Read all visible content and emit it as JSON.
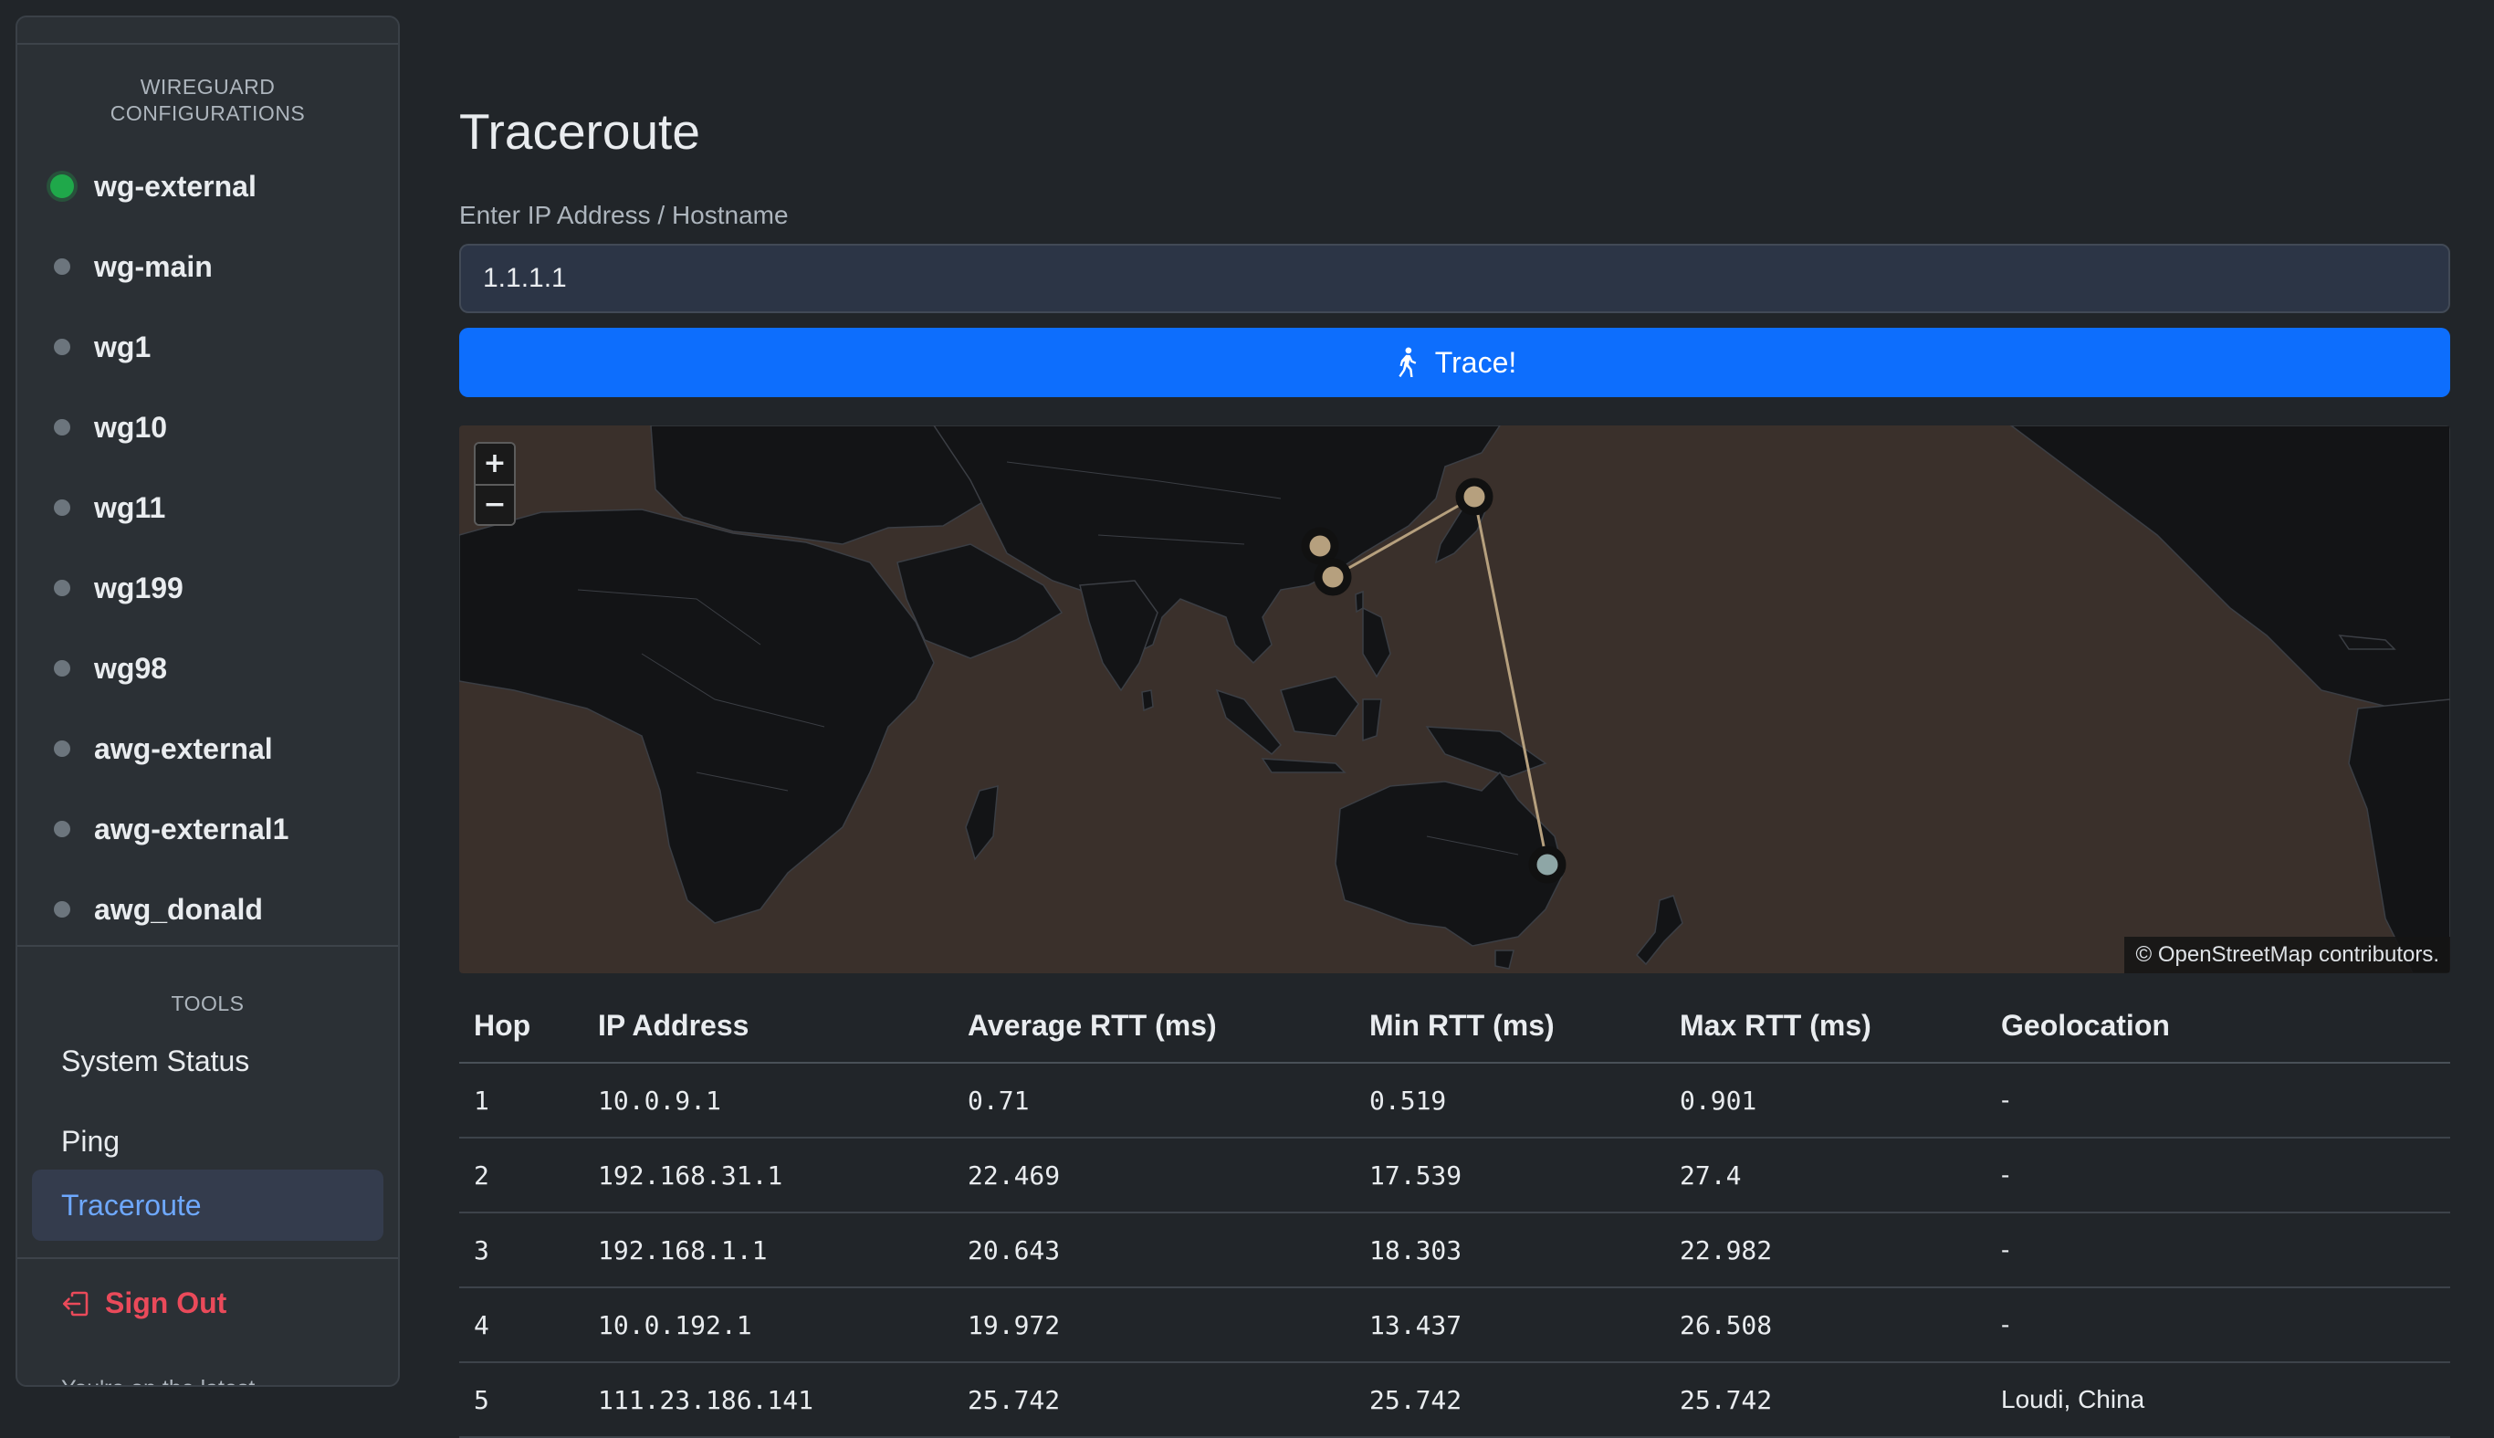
{
  "sidebar": {
    "configs_heading": "WIREGUARD\nCONFIGURATIONS",
    "configs_heading_line1": "WIREGUARD",
    "configs_heading_line2": "CONFIGURATIONS",
    "configs": [
      {
        "name": "wg-external",
        "status": "active"
      },
      {
        "name": "wg-main",
        "status": "inactive"
      },
      {
        "name": "wg1",
        "status": "inactive"
      },
      {
        "name": "wg10",
        "status": "inactive"
      },
      {
        "name": "wg11",
        "status": "inactive"
      },
      {
        "name": "wg199",
        "status": "inactive"
      },
      {
        "name": "wg98",
        "status": "inactive"
      },
      {
        "name": "awg-external",
        "status": "inactive"
      },
      {
        "name": "awg-external1",
        "status": "inactive"
      },
      {
        "name": "awg_donald",
        "status": "inactive"
      }
    ],
    "tools_heading": "TOOLS",
    "tools": [
      {
        "label": "System Status"
      },
      {
        "label": "Ping"
      },
      {
        "label": "Traceroute",
        "active": true
      }
    ],
    "sign_out_label": "Sign Out",
    "latest_text": "You're on the latest"
  },
  "main": {
    "title": "Traceroute",
    "input_label": "Enter IP Address / Hostname",
    "input_value": "1.1.1.1",
    "trace_button_label": "Trace!",
    "map": {
      "zoom_in": "+",
      "zoom_out": "−",
      "attribution_prefix": "©",
      "attribution_link": "OpenStreetMap",
      "attribution_suffix": "contributors."
    },
    "table": {
      "headers": [
        "Hop",
        "IP Address",
        "Average RTT (ms)",
        "Min RTT (ms)",
        "Max RTT (ms)",
        "Geolocation"
      ],
      "rows": [
        [
          "1",
          "10.0.9.1",
          "0.71",
          "0.519",
          "0.901",
          "-"
        ],
        [
          "2",
          "192.168.31.1",
          "22.469",
          "17.539",
          "27.4",
          "-"
        ],
        [
          "3",
          "192.168.1.1",
          "20.643",
          "18.303",
          "22.982",
          "-"
        ],
        [
          "4",
          "10.0.192.1",
          "19.972",
          "13.437",
          "26.508",
          "-"
        ],
        [
          "5",
          "111.23.186.141",
          "25.742",
          "25.742",
          "25.742",
          "Loudi, China"
        ]
      ]
    }
  },
  "colors": {
    "accent": "#0d6efd",
    "active_status": "#1fa84a",
    "inactive_status": "#6c757d",
    "sign_out": "#ea4a5a",
    "active_tool_text": "#6ea8fe"
  },
  "icons": {
    "trace": "person-walking-icon",
    "sign_out": "box-arrow-left-icon"
  }
}
